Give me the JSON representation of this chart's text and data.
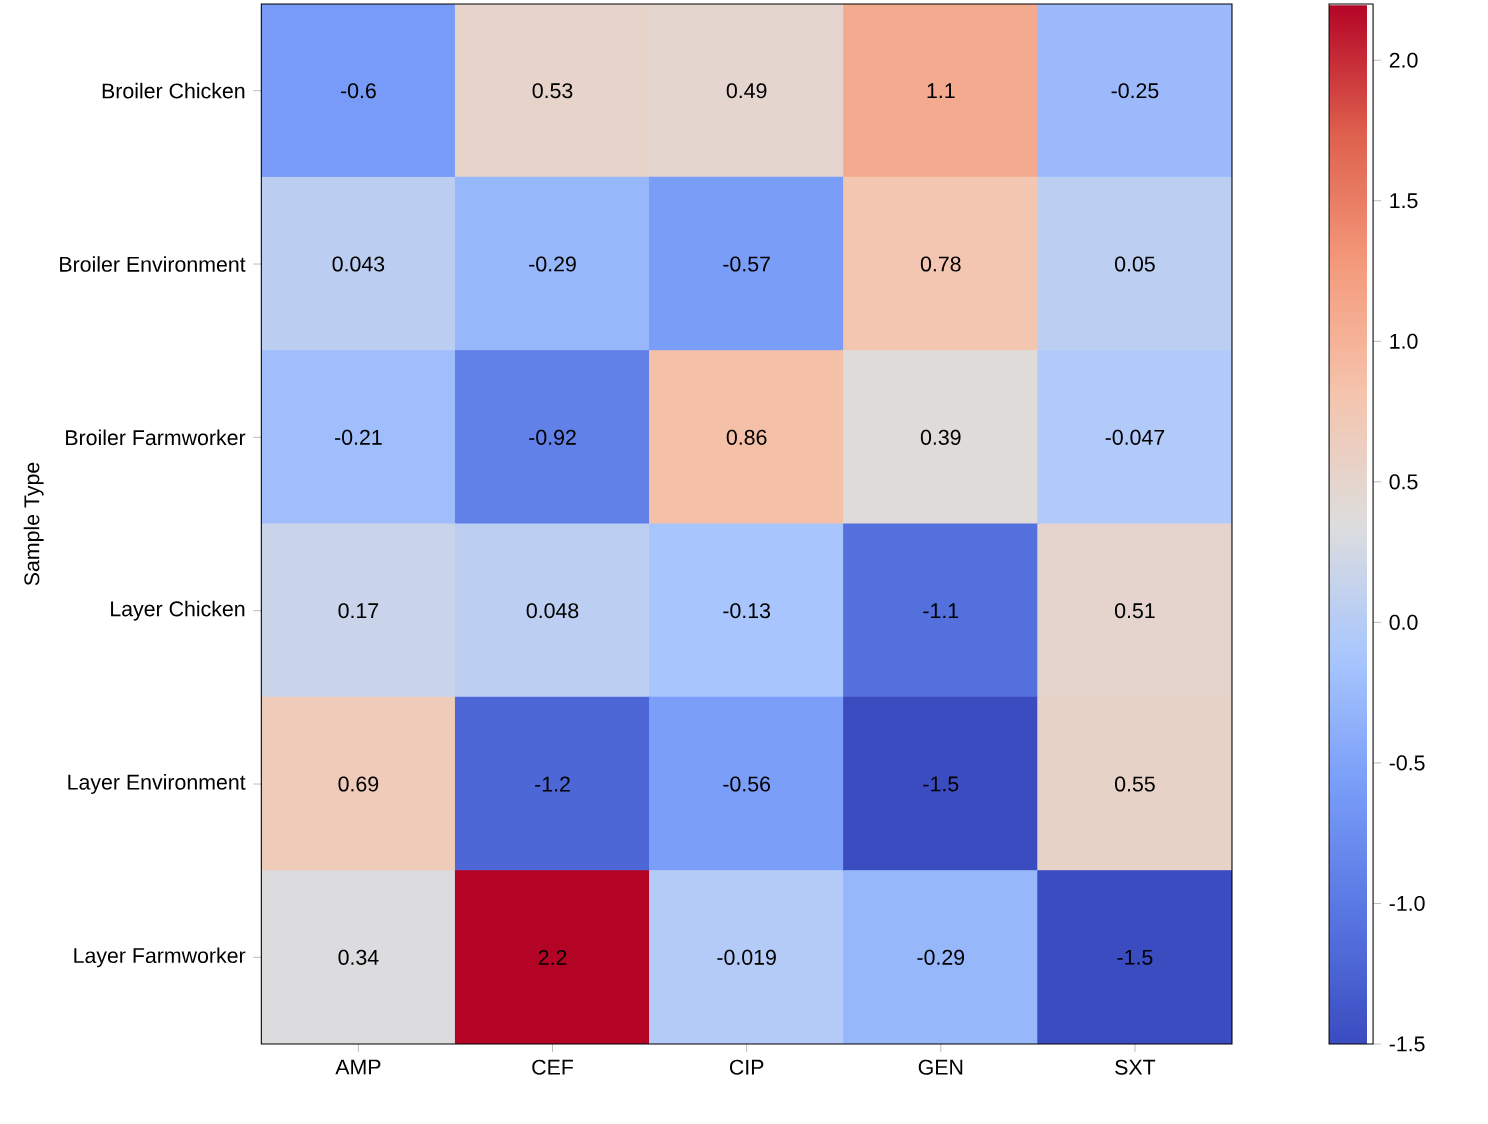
{
  "chart_data": {
    "type": "heatmap",
    "ylabel": "Sample Type",
    "categories": [
      "AMP",
      "CEF",
      "CIP",
      "GEN",
      "SXT"
    ],
    "y_categories": [
      "Broiler Chicken",
      "Broiler Environment",
      "Broiler Farmworker",
      "Layer Chicken",
      "Layer Environment",
      "Layer Farmworker"
    ],
    "cells": [
      [
        -0.6,
        0.53,
        0.49,
        1.1,
        -0.25
      ],
      [
        0.043,
        -0.29,
        -0.57,
        0.78,
        0.05
      ],
      [
        -0.21,
        -0.92,
        0.86,
        0.39,
        -0.047
      ],
      [
        0.17,
        0.048,
        -0.13,
        -1.1,
        0.51
      ],
      [
        0.69,
        -1.2,
        -0.56,
        -1.5,
        0.55
      ],
      [
        0.34,
        2.2,
        -0.019,
        -0.29,
        -1.5
      ]
    ],
    "clim": [
      -1.5,
      2.2
    ],
    "cticks": [
      -1.5,
      {
        "value": -1.0,
        "label": "-1.0"
      },
      -0.5,
      {
        "value": 0.0,
        "label": "0.0"
      },
      0.5,
      {
        "value": 1.0,
        "label": "1.0"
      },
      1.5,
      {
        "value": 2.0,
        "label": "2.0"
      }
    ],
    "data_labels": true,
    "grid": false
  }
}
